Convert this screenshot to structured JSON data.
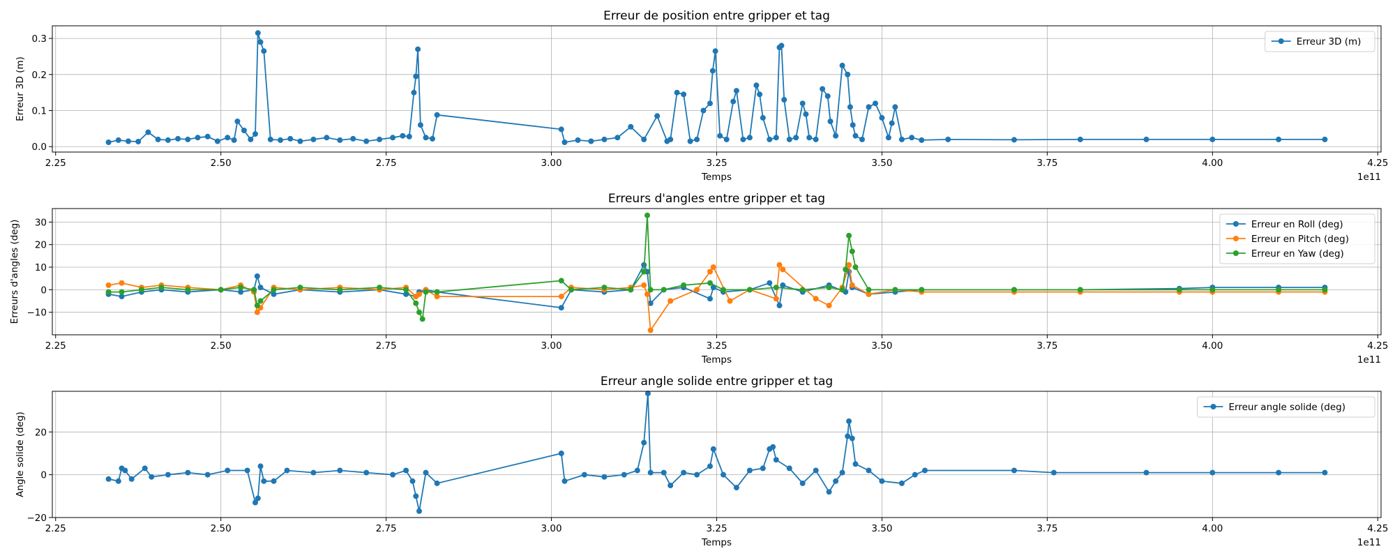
{
  "chart_data": [
    {
      "type": "line",
      "title": "Erreur de position entre gripper et tag",
      "xlabel": "Temps",
      "ylabel": "Erreur 3D (m)",
      "x_offset_label": "1e11",
      "xlim": [
        2.245,
        4.255
      ],
      "ylim": [
        -0.015,
        0.335
      ],
      "xticks": [
        2.25,
        2.5,
        2.75,
        3.0,
        3.25,
        3.5,
        3.75,
        4.0,
        4.25
      ],
      "xtick_labels": [
        "2.25",
        "2.50",
        "2.75",
        "3.00",
        "3.25",
        "3.50",
        "3.75",
        "4.00",
        "4.25"
      ],
      "yticks": [
        0.0,
        0.1,
        0.2,
        0.3
      ],
      "ytick_labels": [
        "0.0",
        "0.1",
        "0.2",
        "0.3"
      ],
      "grid": true,
      "legend_position": "top-right",
      "series": [
        {
          "name": "Erreur 3D (m)",
          "color": "#1f77b4",
          "x": [
            2.33,
            2.345,
            2.36,
            2.375,
            2.39,
            2.405,
            2.42,
            2.435,
            2.45,
            2.465,
            2.48,
            2.495,
            2.51,
            2.52,
            2.525,
            2.535,
            2.545,
            2.552,
            2.556,
            2.56,
            2.565,
            2.575,
            2.59,
            2.605,
            2.62,
            2.64,
            2.66,
            2.68,
            2.7,
            2.72,
            2.74,
            2.76,
            2.775,
            2.785,
            2.792,
            2.795,
            2.798,
            2.802,
            2.81,
            2.82,
            2.827,
            3.015,
            3.02,
            3.04,
            3.06,
            3.08,
            3.1,
            3.12,
            3.14,
            3.16,
            3.175,
            3.18,
            3.19,
            3.2,
            3.21,
            3.22,
            3.23,
            3.24,
            3.244,
            3.248,
            3.255,
            3.265,
            3.275,
            3.28,
            3.29,
            3.3,
            3.31,
            3.315,
            3.32,
            3.33,
            3.34,
            3.345,
            3.348,
            3.352,
            3.36,
            3.37,
            3.38,
            3.385,
            3.39,
            3.4,
            3.41,
            3.418,
            3.422,
            3.43,
            3.44,
            3.448,
            3.452,
            3.456,
            3.46,
            3.47,
            3.48,
            3.49,
            3.5,
            3.51,
            3.515,
            3.52,
            3.53,
            3.545,
            3.56,
            3.6,
            3.7,
            3.8,
            3.9,
            4.0,
            4.1,
            4.17
          ],
          "y": [
            0.012,
            0.018,
            0.015,
            0.014,
            0.04,
            0.02,
            0.018,
            0.022,
            0.02,
            0.025,
            0.028,
            0.015,
            0.025,
            0.018,
            0.07,
            0.045,
            0.02,
            0.035,
            0.315,
            0.29,
            0.265,
            0.02,
            0.018,
            0.022,
            0.015,
            0.02,
            0.025,
            0.018,
            0.022,
            0.015,
            0.02,
            0.025,
            0.03,
            0.028,
            0.15,
            0.195,
            0.27,
            0.06,
            0.025,
            0.022,
            0.088,
            0.048,
            0.012,
            0.018,
            0.015,
            0.02,
            0.025,
            0.055,
            0.02,
            0.085,
            0.015,
            0.02,
            0.15,
            0.145,
            0.015,
            0.02,
            0.1,
            0.12,
            0.21,
            0.265,
            0.03,
            0.02,
            0.125,
            0.155,
            0.02,
            0.025,
            0.17,
            0.145,
            0.08,
            0.02,
            0.025,
            0.275,
            0.28,
            0.13,
            0.02,
            0.025,
            0.12,
            0.09,
            0.025,
            0.02,
            0.16,
            0.14,
            0.07,
            0.03,
            0.225,
            0.2,
            0.11,
            0.06,
            0.03,
            0.02,
            0.11,
            0.12,
            0.08,
            0.025,
            0.065,
            0.11,
            0.02,
            0.025,
            0.018,
            0.02,
            0.019,
            0.02,
            0.02,
            0.02,
            0.02,
            0.02
          ]
        }
      ]
    },
    {
      "type": "line",
      "title": "Erreurs d'angles entre gripper et tag",
      "xlabel": "Temps",
      "ylabel": "Erreurs d'angles (deg)",
      "x_offset_label": "1e11",
      "xlim": [
        2.245,
        4.255
      ],
      "ylim": [
        -20,
        36
      ],
      "xticks": [
        2.25,
        2.5,
        2.75,
        3.0,
        3.25,
        3.5,
        3.75,
        4.0,
        4.25
      ],
      "xtick_labels": [
        "2.25",
        "2.50",
        "2.75",
        "3.00",
        "3.25",
        "3.50",
        "3.75",
        "4.00",
        "4.25"
      ],
      "yticks": [
        -10,
        0,
        10,
        20,
        30
      ],
      "ytick_labels": [
        "−10",
        "0",
        "10",
        "20",
        "30"
      ],
      "grid": true,
      "legend_position": "top-right",
      "series": [
        {
          "name": "Erreur en Roll (deg)",
          "color": "#1f77b4",
          "x": [
            2.33,
            2.35,
            2.38,
            2.41,
            2.45,
            2.5,
            2.53,
            2.55,
            2.555,
            2.56,
            2.58,
            2.62,
            2.68,
            2.74,
            2.78,
            2.795,
            2.8,
            2.81,
            2.827,
            3.015,
            3.03,
            3.08,
            3.12,
            3.14,
            3.145,
            3.15,
            3.17,
            3.2,
            3.24,
            3.245,
            3.26,
            3.3,
            3.33,
            3.345,
            3.35,
            3.38,
            3.42,
            3.445,
            3.45,
            3.455,
            3.48,
            3.52,
            3.56,
            3.7,
            3.8,
            3.95,
            4.0,
            4.1,
            4.17
          ],
          "y": [
            -2,
            -3,
            -1,
            0,
            -1,
            0,
            -1,
            0,
            6,
            1,
            -2,
            0,
            -1,
            0,
            -2,
            -3,
            -1,
            0,
            -1,
            -8,
            0,
            -1,
            0,
            11,
            8,
            -6,
            0,
            1,
            -4,
            1,
            -1,
            0,
            3,
            -7,
            2,
            -1,
            2,
            -1,
            8,
            1,
            -2,
            -1,
            0,
            0,
            0,
            0.5,
            1,
            1,
            1
          ]
        },
        {
          "name": "Erreur en Pitch (deg)",
          "color": "#ff7f0e",
          "x": [
            2.33,
            2.35,
            2.38,
            2.41,
            2.45,
            2.5,
            2.53,
            2.55,
            2.555,
            2.56,
            2.58,
            2.62,
            2.68,
            2.74,
            2.78,
            2.795,
            2.8,
            2.81,
            2.827,
            3.015,
            3.03,
            3.08,
            3.12,
            3.14,
            3.145,
            3.15,
            3.18,
            3.22,
            3.24,
            3.245,
            3.27,
            3.3,
            3.34,
            3.345,
            3.35,
            3.4,
            3.42,
            3.44,
            3.45,
            3.455,
            3.48,
            3.52,
            3.56,
            3.7,
            3.8,
            3.95,
            4.0,
            4.1,
            4.17
          ],
          "y": [
            2,
            3,
            1,
            2,
            1,
            0,
            2,
            -1,
            -10,
            -8,
            1,
            0,
            1,
            0,
            1,
            -3,
            -2,
            0,
            -3,
            -3,
            1,
            0,
            1,
            2,
            -2,
            -18,
            -5,
            0,
            8,
            10,
            -5,
            0,
            -4,
            11,
            9,
            -4,
            -7,
            1,
            11,
            2,
            -2,
            0,
            -1,
            -1,
            -1,
            -1,
            -1,
            -1,
            -1
          ]
        },
        {
          "name": "Erreur en Yaw (deg)",
          "color": "#2ca02c",
          "x": [
            2.33,
            2.35,
            2.38,
            2.41,
            2.45,
            2.5,
            2.53,
            2.55,
            2.555,
            2.56,
            2.58,
            2.62,
            2.68,
            2.74,
            2.78,
            2.795,
            2.8,
            2.805,
            2.81,
            2.827,
            3.015,
            3.03,
            3.08,
            3.12,
            3.14,
            3.145,
            3.15,
            3.17,
            3.2,
            3.24,
            3.26,
            3.3,
            3.34,
            3.38,
            3.42,
            3.44,
            3.445,
            3.45,
            3.455,
            3.46,
            3.48,
            3.52,
            3.56,
            3.7,
            3.8,
            3.95,
            4.0,
            4.1,
            4.17
          ],
          "y": [
            -1,
            -1,
            0,
            1,
            0,
            0,
            1,
            0,
            -7,
            -5,
            0,
            1,
            0,
            1,
            0,
            -6,
            -10,
            -13,
            -1,
            -1,
            4,
            0,
            1,
            0,
            8,
            33,
            0,
            0,
            2,
            3,
            0,
            0,
            1,
            0,
            1,
            0,
            9,
            24,
            17,
            10,
            0,
            0,
            0,
            0,
            0,
            0,
            0,
            0,
            0
          ]
        }
      ]
    },
    {
      "type": "line",
      "title": "Erreur angle solide entre gripper et tag",
      "xlabel": "Temps",
      "ylabel": "Angle solide (deg)",
      "x_offset_label": "1e11",
      "xlim": [
        2.245,
        4.255
      ],
      "ylim": [
        -20,
        39
      ],
      "xticks": [
        2.25,
        2.5,
        2.75,
        3.0,
        3.25,
        3.5,
        3.75,
        4.0,
        4.25
      ],
      "xtick_labels": [
        "2.25",
        "2.50",
        "2.75",
        "3.00",
        "3.25",
        "3.50",
        "3.75",
        "4.00",
        "4.25"
      ],
      "yticks": [
        -20,
        0,
        20
      ],
      "ytick_labels": [
        "−20",
        "0",
        "20"
      ],
      "grid": true,
      "legend_position": "top-right",
      "series": [
        {
          "name": "Erreur angle solide (deg)",
          "color": "#1f77b4",
          "x": [
            2.33,
            2.345,
            2.35,
            2.355,
            2.365,
            2.385,
            2.395,
            2.42,
            2.45,
            2.48,
            2.51,
            2.54,
            2.552,
            2.556,
            2.56,
            2.565,
            2.58,
            2.6,
            2.64,
            2.68,
            2.72,
            2.76,
            2.78,
            2.79,
            2.795,
            2.8,
            2.81,
            2.827,
            3.015,
            3.02,
            3.05,
            3.08,
            3.11,
            3.13,
            3.14,
            3.146,
            3.15,
            3.17,
            3.18,
            3.2,
            3.22,
            3.24,
            3.245,
            3.26,
            3.28,
            3.3,
            3.32,
            3.33,
            3.335,
            3.34,
            3.36,
            3.38,
            3.4,
            3.42,
            3.43,
            3.44,
            3.448,
            3.45,
            3.455,
            3.46,
            3.48,
            3.5,
            3.53,
            3.55,
            3.565,
            3.7,
            3.76,
            3.9,
            4.0,
            4.1,
            4.17
          ],
          "y": [
            -2,
            -3,
            3,
            2,
            -2,
            3,
            -1,
            0,
            1,
            0,
            2,
            2,
            -13,
            -11,
            4,
            -3,
            -3,
            2,
            1,
            2,
            1,
            0,
            2,
            -3,
            -10,
            -17,
            1,
            -4,
            10,
            -3,
            0,
            -1,
            0,
            2,
            15,
            38,
            1,
            1,
            -5,
            1,
            0,
            4,
            12,
            0,
            -6,
            2,
            3,
            12,
            13,
            7,
            3,
            -4,
            2,
            -8,
            -3,
            1,
            18,
            25,
            17,
            5,
            2,
            -3,
            -4,
            0,
            2,
            2,
            1,
            1,
            1,
            1,
            1
          ]
        }
      ]
    }
  ]
}
